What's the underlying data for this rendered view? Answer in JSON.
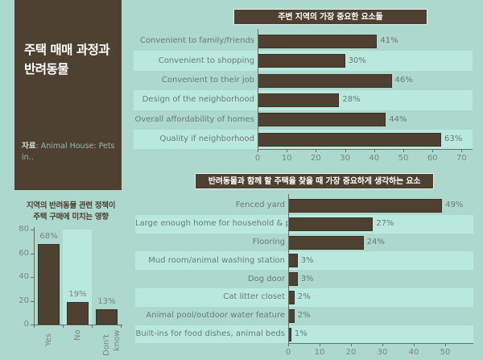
{
  "panel": {
    "title_line1": "주택 매매 과정과",
    "title_line2": "반려동물",
    "source_label": "자료",
    "source_text": ": Animal House: Pets in.."
  },
  "colors": {
    "background": "#acd8ce",
    "band": "#b9e8df",
    "bar": "#4e4131",
    "panel": "#4e4131"
  },
  "chart_data": [
    {
      "type": "bar",
      "orientation": "horizontal",
      "title": "주변 지역의 가장 중요한 요소들",
      "categories": [
        "Convenient to family/friends",
        "Convenient to shopping",
        "Convenient to their job",
        "Design of the neighborhood",
        "Overall affordability of homes",
        "Quality if neighborhood"
      ],
      "values": [
        41,
        30,
        46,
        28,
        44,
        63
      ],
      "value_labels": [
        "41%",
        "30%",
        "46%",
        "28%",
        "44%",
        "63%"
      ],
      "xlim": [
        0,
        70
      ],
      "xticks": [
        "0",
        "10",
        "20",
        "30",
        "40",
        "50",
        "60",
        "70"
      ],
      "xlabel": "",
      "ylabel": ""
    },
    {
      "type": "bar",
      "orientation": "horizontal",
      "title": "반려동물과 함께 할 주택을 찾을 때 가장 중요하게 생각하는 요소",
      "categories": [
        "Fenced yard",
        "Large enough home for household & pet",
        "Flooring",
        "Mud room/animal washing station",
        "Dog door",
        "Cat litter closet",
        "Animal pool/outdoor water feature",
        "Built-ins for food dishes, animal beds"
      ],
      "values": [
        49,
        27,
        24,
        3,
        3,
        2,
        2,
        1
      ],
      "value_labels": [
        "49%",
        "27%",
        "24%",
        "3%",
        "3%",
        "2%",
        "2%",
        "1%"
      ],
      "xlim": [
        0,
        59
      ],
      "xticks": [
        "0",
        "10",
        "20",
        "30",
        "40",
        "50"
      ],
      "xlabel": "",
      "ylabel": ""
    },
    {
      "type": "bar",
      "orientation": "vertical",
      "title": "지역의 반려동물 관련 정책이 주택 구매에 미치는 영향",
      "title_line1": "지역의 반려동물 관련 정책이",
      "title_line2": "주택 구매에 미치는 영향",
      "categories": [
        "Yes",
        "No",
        "Don't know"
      ],
      "category_lines": [
        [
          "Yes"
        ],
        [
          "No"
        ],
        [
          "Don't",
          "know"
        ]
      ],
      "values": [
        68,
        19,
        13
      ],
      "value_labels": [
        "68%",
        "19%",
        "13%"
      ],
      "ylim": [
        0,
        80
      ],
      "yticks": [
        "0",
        "20",
        "40",
        "60",
        "80"
      ],
      "xlabel": "",
      "ylabel": ""
    }
  ]
}
